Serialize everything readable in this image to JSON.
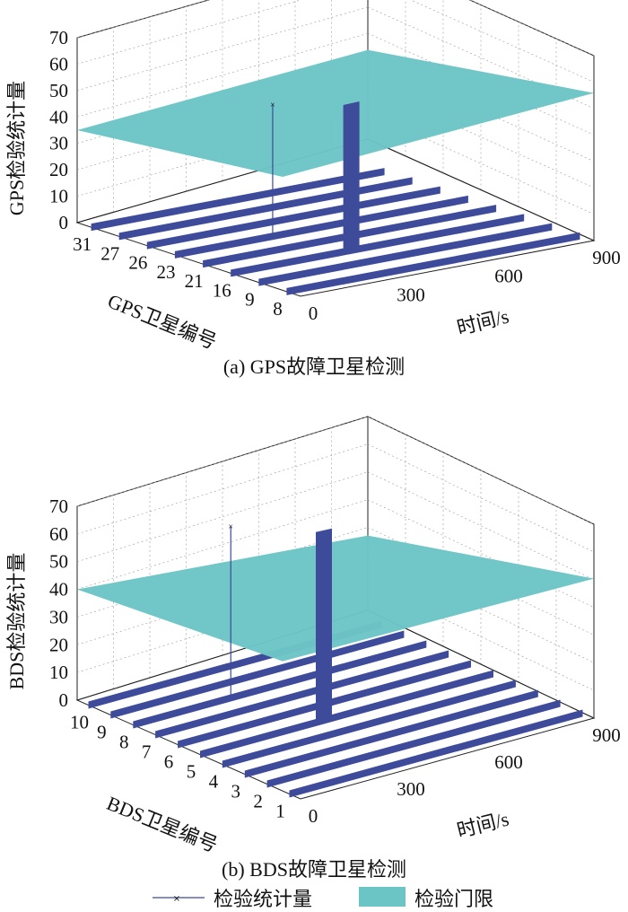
{
  "chart_data": [
    {
      "type": "surface3d",
      "caption": "(a) GPS故障卫星检测",
      "zlabel": "GPS检验统计量",
      "ylabel": "GPS卫星编号",
      "xlabel": "时间/s",
      "z_ticks": [
        "0",
        "10",
        "20",
        "30",
        "40",
        "50",
        "60",
        "70"
      ],
      "x_ticks": [
        "0",
        "300",
        "600",
        "900"
      ],
      "sat_ticks": [
        "8",
        "9",
        "16",
        "21",
        "23",
        "26",
        "27",
        "31"
      ],
      "zlim": [
        0,
        70
      ],
      "xlim": [
        0,
        900
      ],
      "grid": true,
      "threshold_series": {
        "name": "检验门限",
        "color": "#6cc5c5",
        "approx_level": [
          35,
          45
        ]
      },
      "statistic_series": {
        "name": "检验统计量",
        "color": "#3d4b9a"
      },
      "fault_spikes": [
        {
          "satellite": "16",
          "time": 370,
          "value": 55
        },
        {
          "satellite": "23",
          "time": 300,
          "value": 50
        }
      ]
    },
    {
      "type": "surface3d",
      "caption": "(b) BDS故障卫星检测",
      "zlabel": "BDS检验统计量",
      "ylabel": "BDS卫星编号",
      "xlabel": "时间/s",
      "z_ticks": [
        "0",
        "10",
        "20",
        "30",
        "40",
        "50",
        "60",
        "70"
      ],
      "x_ticks": [
        "0",
        "300",
        "600",
        "900"
      ],
      "sat_ticks": [
        "1",
        "2",
        "3",
        "4",
        "5",
        "6",
        "7",
        "8",
        "9",
        "10"
      ],
      "zlim": [
        0,
        70
      ],
      "xlim": [
        0,
        900
      ],
      "grid": true,
      "threshold_series": {
        "name": "检验门限",
        "color": "#6cc5c5",
        "approx_level": [
          40,
          40
        ]
      },
      "statistic_series": {
        "name": "检验统计量",
        "color": "#3d4b9a"
      },
      "fault_spikes": [
        {
          "satellite": "5",
          "time": 380,
          "value": 68
        },
        {
          "satellite": "8",
          "time": 300,
          "value": 62
        }
      ]
    }
  ],
  "legend": {
    "statistic_label": "检验统计量",
    "threshold_label": "检验门限"
  }
}
